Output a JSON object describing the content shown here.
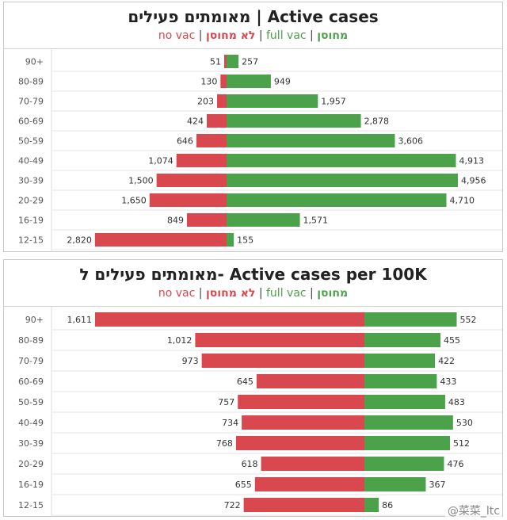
{
  "panels": [
    {
      "title": "מאומתים פעילים | Active cases",
      "subtitle": {
        "no_vac_en": "no vac",
        "no_vac_he": "לא מחוסן",
        "full_vac_en": "full vac",
        "full_vac_he": "מחוסן",
        "sep": "|"
      }
    },
    {
      "title": "מאומתים פעילים ל- Active cases per 100K",
      "subtitle": {
        "no_vac_en": "no vac",
        "no_vac_he": "לא מחוסן",
        "full_vac_en": "full vac",
        "full_vac_he": "מחוסן",
        "sep": "|"
      }
    }
  ],
  "colors": {
    "no_vac": "#d9474f",
    "full_vac": "#4ca24a",
    "axis_line": "#aaaaaa",
    "row_line": "#e6e6e6"
  },
  "watermark": "@菜菜_ltc",
  "chart_data": [
    {
      "type": "bar",
      "orientation": "horizontal-diverging",
      "categories": [
        "90+",
        "80-89",
        "70-79",
        "60-69",
        "50-59",
        "40-49",
        "30-39",
        "20-29",
        "16-19",
        "12-15"
      ],
      "series": [
        {
          "name": "no vac",
          "values": [
            51,
            130,
            203,
            424,
            646,
            1074,
            1500,
            1650,
            849,
            2820
          ],
          "labels": [
            "51",
            "130",
            "203",
            "424",
            "646",
            "1,074",
            "1,500",
            "1,650",
            "849",
            "2,820"
          ]
        },
        {
          "name": "full vac",
          "values": [
            257,
            949,
            1957,
            2878,
            3606,
            4913,
            4956,
            4710,
            1571,
            155
          ],
          "labels": [
            "257",
            "949",
            "1,957",
            "2,878",
            "3,606",
            "4,913",
            "4,956",
            "4,710",
            "1,571",
            "155"
          ]
        }
      ],
      "xlim": [
        -2820,
        4956
      ]
    },
    {
      "type": "bar",
      "orientation": "horizontal-diverging",
      "categories": [
        "90+",
        "80-89",
        "70-79",
        "60-69",
        "50-59",
        "40-49",
        "30-39",
        "20-29",
        "16-19",
        "12-15"
      ],
      "series": [
        {
          "name": "no vac",
          "values": [
            1611,
            1012,
            973,
            645,
            757,
            734,
            768,
            618,
            655,
            722
          ],
          "labels": [
            "1,611",
            "1,012",
            "973",
            "645",
            "757",
            "734",
            "768",
            "618",
            "655",
            "722"
          ]
        },
        {
          "name": "full vac",
          "values": [
            552,
            455,
            422,
            433,
            483,
            530,
            512,
            476,
            367,
            86
          ],
          "labels": [
            "552",
            "455",
            "422",
            "433",
            "483",
            "530",
            "512",
            "476",
            "367",
            "86"
          ]
        }
      ],
      "xlim": [
        -1611,
        552
      ]
    }
  ]
}
